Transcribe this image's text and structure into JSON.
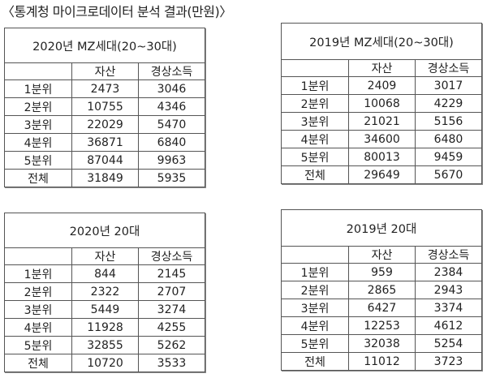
{
  "page": {
    "title": "〈통계청 마이크로데이터 분석 결과(만원)〉"
  },
  "tables": [
    {
      "title": "2020년  MZ세대(20~30대)",
      "headers": [
        "",
        "자산",
        "경상소득"
      ],
      "rows": [
        {
          "label": "1분위",
          "asset": "2473",
          "income": "3046"
        },
        {
          "label": "2분위",
          "asset": "10755",
          "income": "4346"
        },
        {
          "label": "3분위",
          "asset": "22029",
          "income": "5470"
        },
        {
          "label": "4분위",
          "asset": "36871",
          "income": "6840"
        },
        {
          "label": "5분위",
          "asset": "87044",
          "income": "9963"
        },
        {
          "label": "전체",
          "asset": "31849",
          "income": "5935"
        }
      ]
    },
    {
      "title": "2019년  MZ세대(20~30대)",
      "headers": [
        "",
        "자산",
        "경상소득"
      ],
      "rows": [
        {
          "label": "1분위",
          "asset": "2409",
          "income": "3017"
        },
        {
          "label": "2분위",
          "asset": "10068",
          "income": "4229"
        },
        {
          "label": "3분위",
          "asset": "21021",
          "income": "5156"
        },
        {
          "label": "4분위",
          "asset": "34600",
          "income": "6480"
        },
        {
          "label": "5분위",
          "asset": "80013",
          "income": "9459"
        },
        {
          "label": "전체",
          "asset": "29649",
          "income": "5670"
        }
      ]
    },
    {
      "title": "2020년  20대",
      "headers": [
        "",
        "자산",
        "경상소득"
      ],
      "rows": [
        {
          "label": "1분위",
          "asset": "844",
          "income": "2145"
        },
        {
          "label": "2분위",
          "asset": "2322",
          "income": "2707"
        },
        {
          "label": "3분위",
          "asset": "5449",
          "income": "3274"
        },
        {
          "label": "4분위",
          "asset": "11928",
          "income": "4255"
        },
        {
          "label": "5분위",
          "asset": "32855",
          "income": "5262"
        },
        {
          "label": "전체",
          "asset": "10720",
          "income": "3533"
        }
      ]
    },
    {
      "title": "2019년  20대",
      "headers": [
        "",
        "자산",
        "경상소득"
      ],
      "rows": [
        {
          "label": "1분위",
          "asset": "959",
          "income": "2384"
        },
        {
          "label": "2분위",
          "asset": "2865",
          "income": "2943"
        },
        {
          "label": "3분위",
          "asset": "6427",
          "income": "3374"
        },
        {
          "label": "4분위",
          "asset": "12253",
          "income": "4612"
        },
        {
          "label": "5분위",
          "asset": "32038",
          "income": "5254"
        },
        {
          "label": "전체",
          "asset": "11012",
          "income": "3723"
        }
      ]
    }
  ]
}
